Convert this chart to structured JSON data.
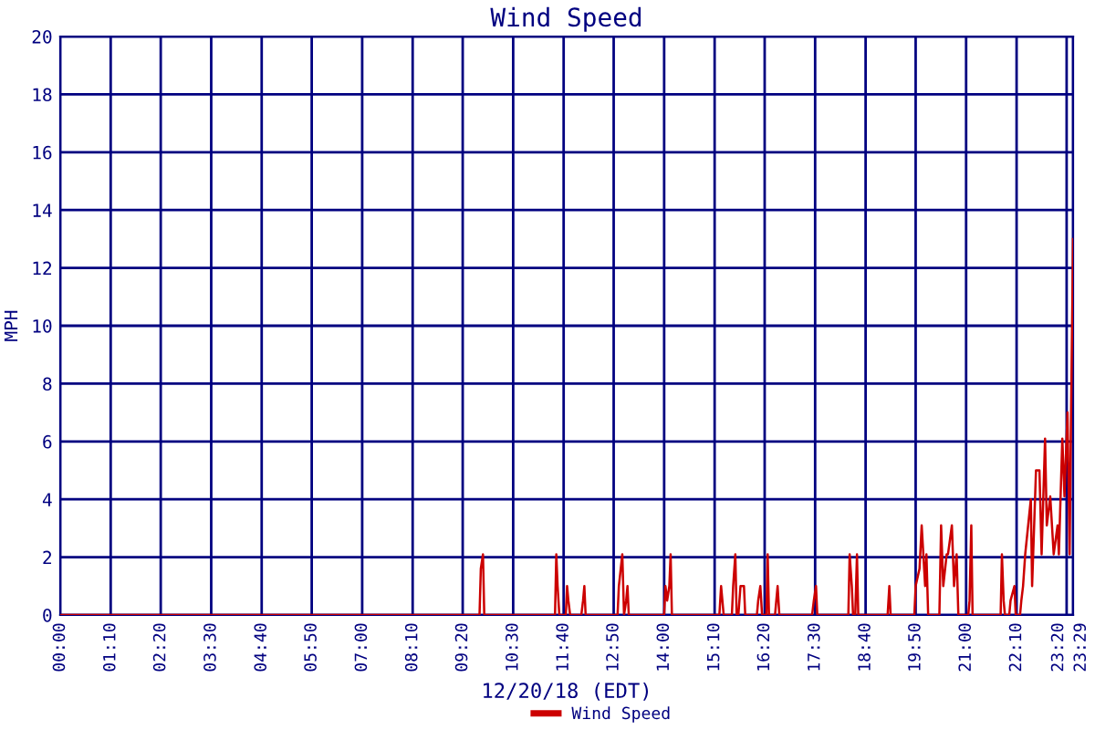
{
  "chart_data": {
    "type": "line",
    "title": "Wind Speed",
    "xlabel": "12/20/18 (EDT)",
    "ylabel": "MPH",
    "x": [
      0,
      9.72,
      9.75,
      9.8,
      9.83,
      11.47,
      11.5,
      11.53,
      11.57,
      11.72,
      11.75,
      11.78,
      11.82,
      12.08,
      12.12,
      12.15,
      12.18,
      12.92,
      12.95,
      13.03,
      13.07,
      13.12,
      13.15,
      13.18,
      14.0,
      14.03,
      14.07,
      14.12,
      14.15,
      14.18,
      15.28,
      15.32,
      15.35,
      15.38,
      15.57,
      15.6,
      15.65,
      15.68,
      15.72,
      15.77,
      15.82,
      15.85,
      15.88,
      16.15,
      16.18,
      16.23,
      16.27,
      16.37,
      16.4,
      16.43,
      16.57,
      16.6,
      16.63,
      16.67,
      17.43,
      17.47,
      17.52,
      17.55,
      18.27,
      18.3,
      18.35,
      18.38,
      18.43,
      18.47,
      18.5,
      19.18,
      19.22,
      19.25,
      19.8,
      19.83,
      19.92,
      19.97,
      20.05,
      20.08,
      20.12,
      20.38,
      20.42,
      20.47,
      20.55,
      20.58,
      20.67,
      20.72,
      20.78,
      20.82,
      21.05,
      21.08,
      21.12,
      21.15,
      21.8,
      21.83,
      21.87,
      21.9,
      22.0,
      22.03,
      22.12,
      22.15,
      22.25,
      22.28,
      22.32,
      22.37,
      22.5,
      22.53,
      22.62,
      22.7,
      22.75,
      22.83,
      22.87,
      22.95,
      23.03,
      23.12,
      23.15,
      23.23,
      23.28,
      23.35,
      23.4,
      23.43,
      23.48
    ],
    "series": [
      {
        "name": "Wind Speed",
        "color": "#cc0000",
        "values": [
          0,
          0,
          1.6,
          2.1,
          0,
          0,
          2.1,
          1.0,
          0,
          0,
          1.0,
          0.5,
          0,
          0,
          0.5,
          1.0,
          0,
          0,
          1.0,
          2.1,
          0,
          0.5,
          1.0,
          0,
          0,
          1.0,
          0.5,
          1.0,
          2.1,
          0,
          0,
          1.0,
          0.5,
          0,
          0,
          1.0,
          2.1,
          0,
          0,
          1.0,
          1.0,
          1.0,
          0,
          0,
          0.5,
          1.0,
          0,
          0,
          2.1,
          0,
          0,
          0.5,
          1.0,
          0,
          0,
          0.5,
          1.0,
          0,
          0,
          2.1,
          1.0,
          0,
          0,
          2.1,
          0,
          0,
          1.0,
          0,
          0,
          1.0,
          1.6,
          3.1,
          1.0,
          2.1,
          0,
          0,
          3.1,
          1.0,
          2.1,
          2.1,
          3.1,
          1.0,
          2.1,
          0,
          0,
          0.5,
          3.1,
          0,
          0,
          2.1,
          0.5,
          0,
          0,
          0.5,
          1.0,
          0,
          0,
          0.5,
          1.0,
          2.1,
          4.0,
          1.0,
          5.0,
          5.0,
          2.1,
          6.1,
          3.1,
          4.1,
          2.1,
          3.1,
          2.1,
          6.1,
          4.1,
          7.0,
          2.1,
          6.6,
          13.0
        ]
      }
    ],
    "xlim": [
      0,
      23.48
    ],
    "xticks": [
      {
        "value": 0,
        "label": "00:00"
      },
      {
        "value": 1.17,
        "label": "01:10"
      },
      {
        "value": 2.33,
        "label": "02:20"
      },
      {
        "value": 3.5,
        "label": "03:30"
      },
      {
        "value": 4.67,
        "label": "04:40"
      },
      {
        "value": 5.83,
        "label": "05:50"
      },
      {
        "value": 7,
        "label": "07:00"
      },
      {
        "value": 8.17,
        "label": "08:10"
      },
      {
        "value": 9.33,
        "label": "09:20"
      },
      {
        "value": 10.5,
        "label": "10:30"
      },
      {
        "value": 11.67,
        "label": "11:40"
      },
      {
        "value": 12.83,
        "label": "12:50"
      },
      {
        "value": 14,
        "label": "14:00"
      },
      {
        "value": 15.17,
        "label": "15:10"
      },
      {
        "value": 16.33,
        "label": "16:20"
      },
      {
        "value": 17.5,
        "label": "17:30"
      },
      {
        "value": 18.67,
        "label": "18:40"
      },
      {
        "value": 19.83,
        "label": "19:50"
      },
      {
        "value": 21,
        "label": "21:00"
      },
      {
        "value": 22.17,
        "label": "22:10"
      },
      {
        "value": 23.33,
        "label": "23:20"
      },
      {
        "value": 23.48,
        "label": "23:29"
      }
    ],
    "ylim": [
      0,
      20
    ],
    "yticks": [
      0,
      2,
      4,
      6,
      8,
      10,
      12,
      14,
      16,
      18,
      20
    ],
    "grid": true,
    "legend": "bottom",
    "marker": "none",
    "line_style": "solid"
  }
}
